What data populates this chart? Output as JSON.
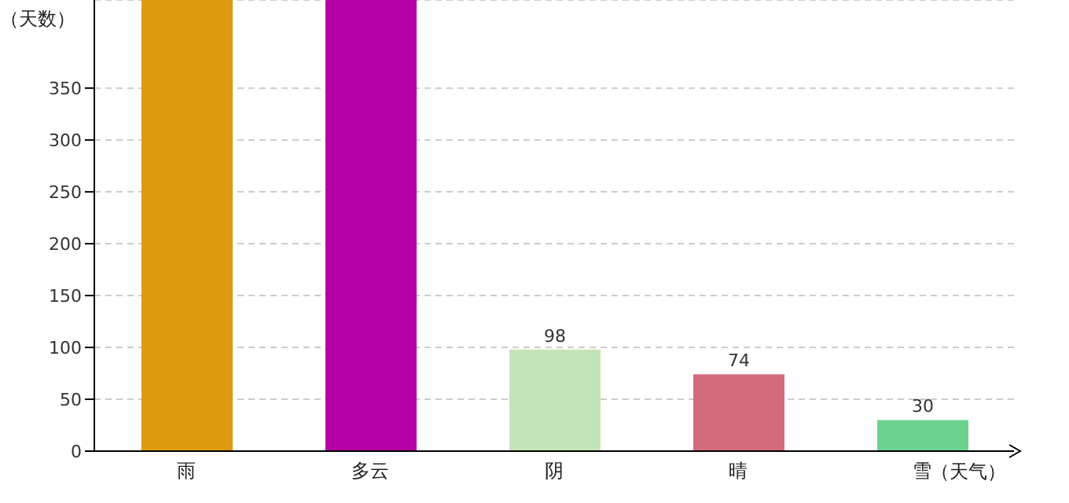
{
  "chart_data": {
    "type": "bar",
    "xlabel": "（天气）",
    "ylabel": "（天数）",
    "categories": [
      "雨",
      "多云",
      "阴",
      "晴",
      "雪"
    ],
    "values": [
      435,
      435,
      98,
      74,
      30
    ],
    "colors": [
      "#dd9a0e",
      "#b400a4",
      "#c2e4b8",
      "#d26c7d",
      "#6ad28e"
    ],
    "value_labels": [
      null,
      null,
      "98",
      "74",
      "30"
    ],
    "ylim": [
      0,
      435
    ],
    "yticks": [
      0,
      50,
      100,
      150,
      200,
      250,
      300,
      350
    ],
    "grid": "y",
    "legend": false
  }
}
